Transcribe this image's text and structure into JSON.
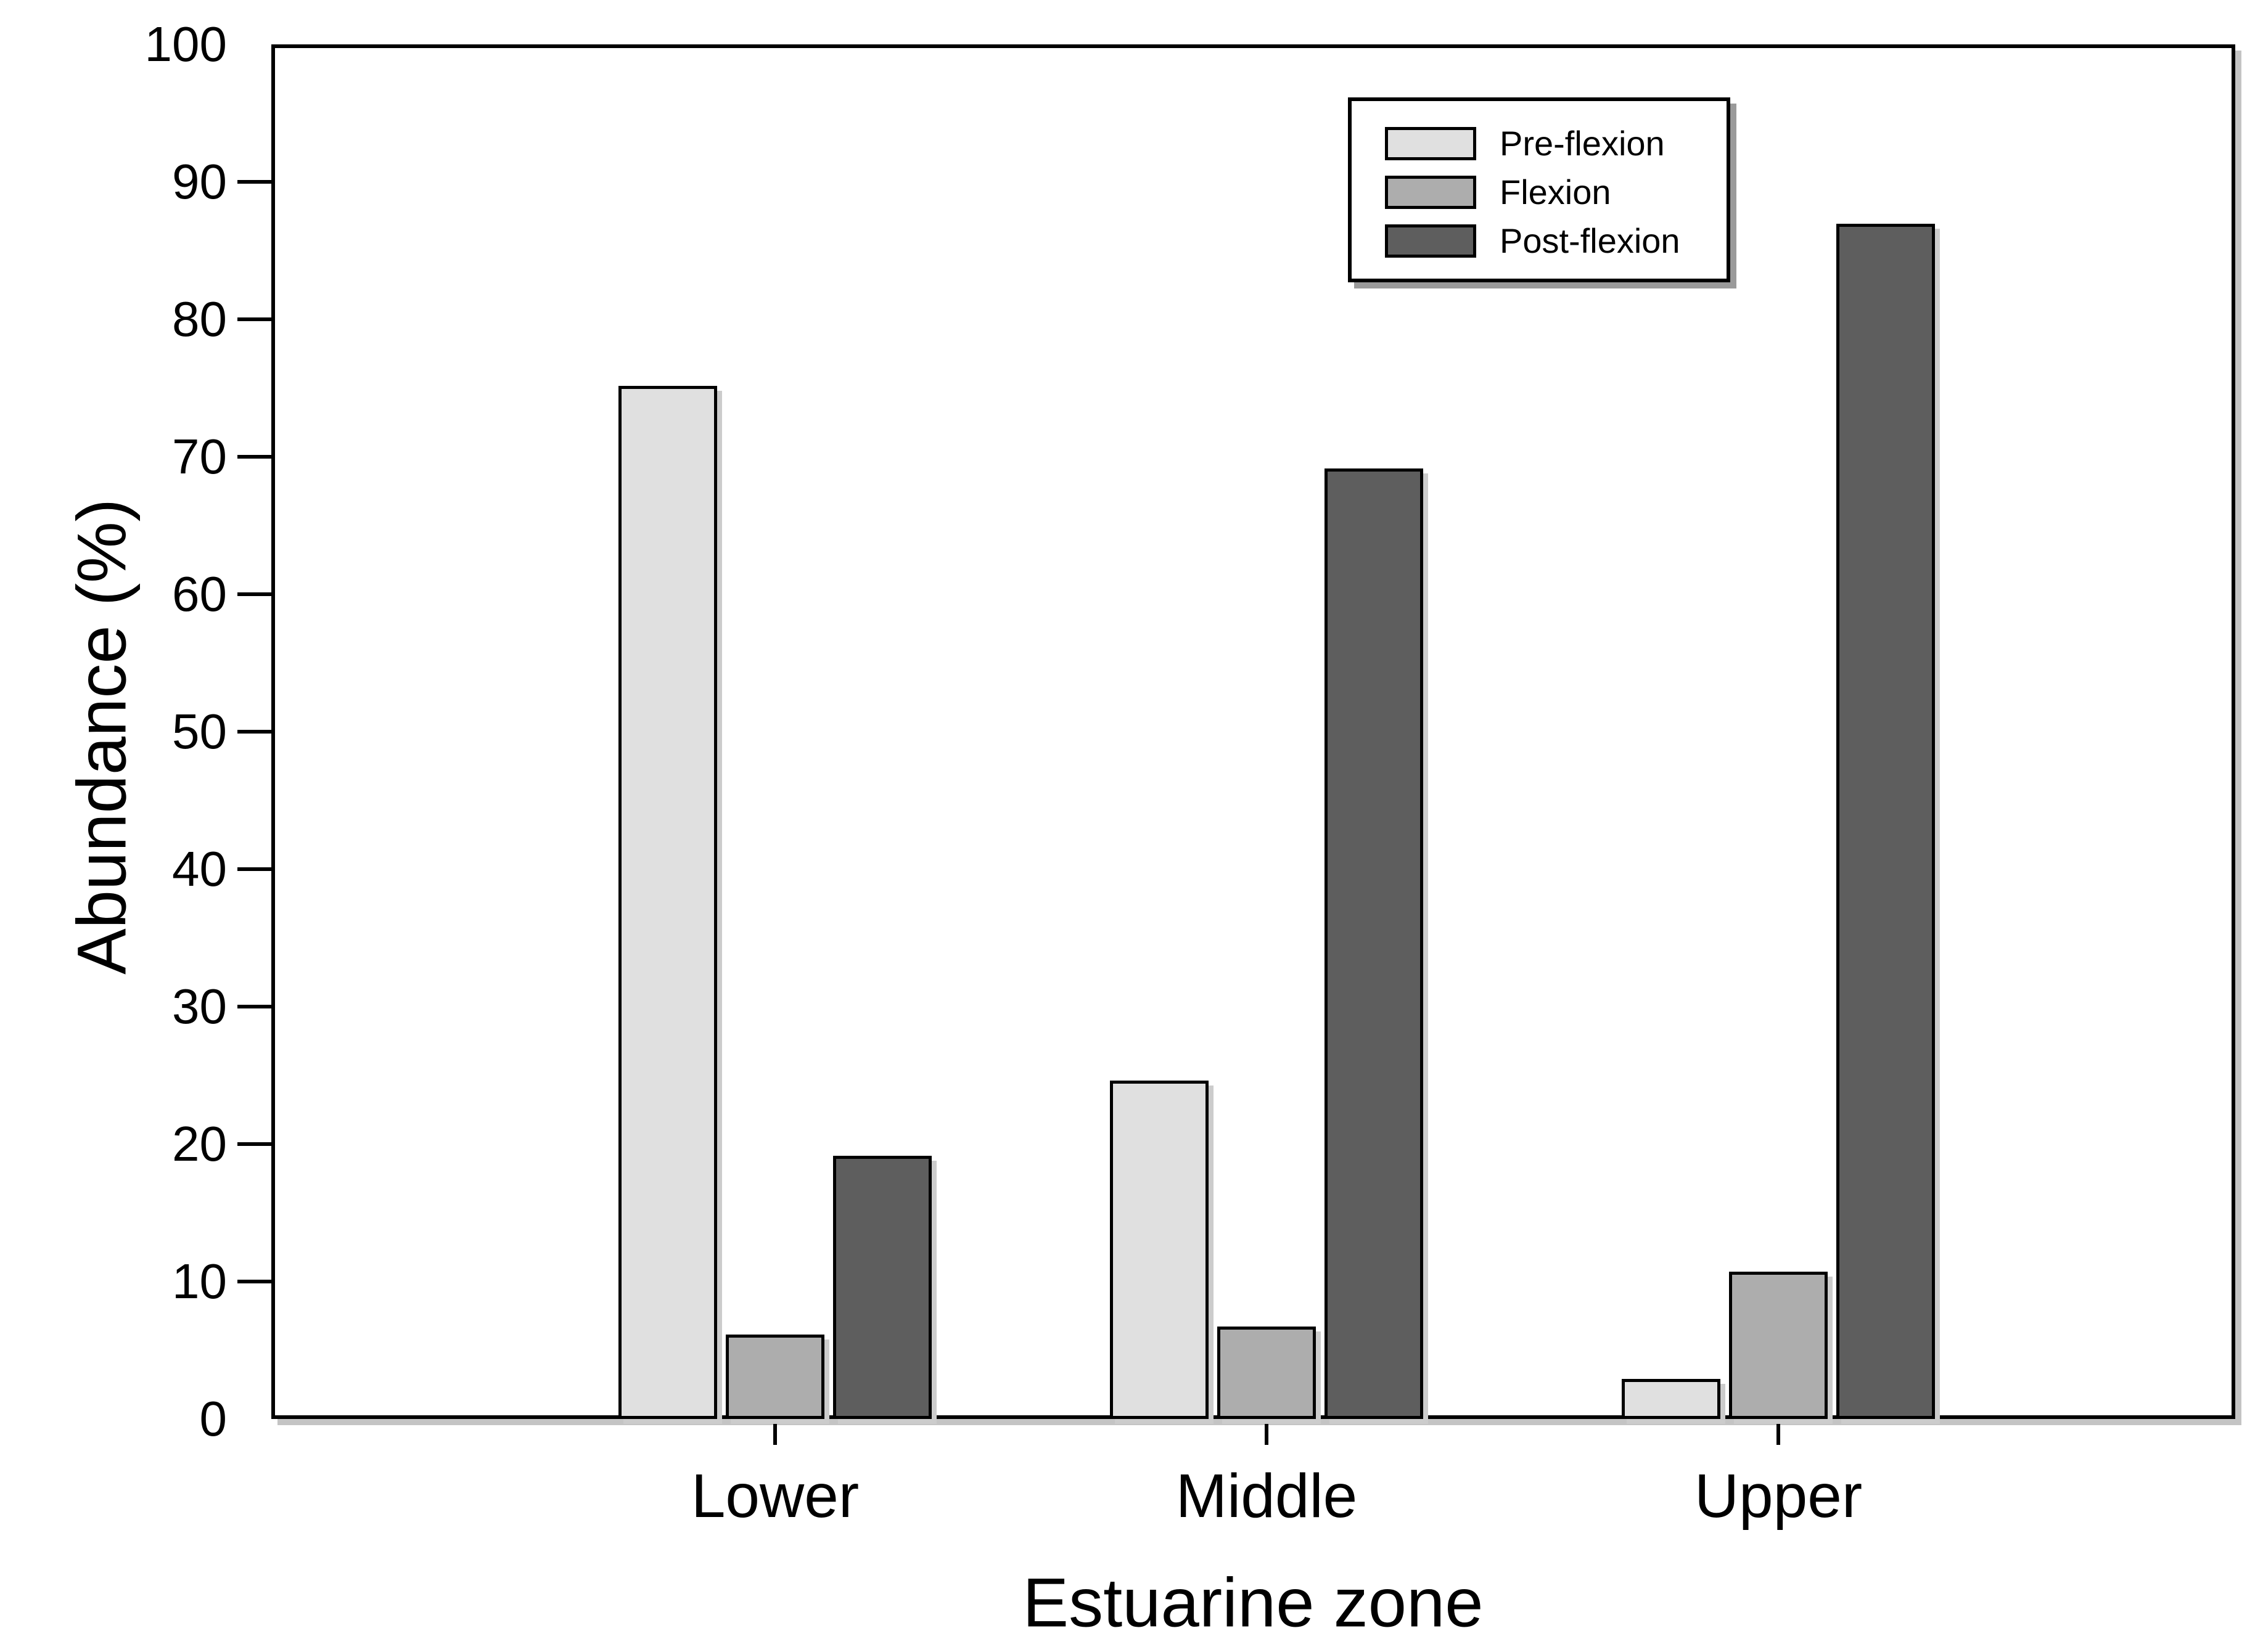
{
  "figure": {
    "ylabel": "Abundance (%)",
    "xlabel": "Estuarine zone"
  },
  "chart_data": {
    "type": "bar",
    "title": "",
    "categories": [
      "Lower",
      "Middle",
      "Upper"
    ],
    "series": [
      {
        "name": "Pre-flexion",
        "color": "#e0e0e0",
        "values": [
          75.0,
          24.5,
          2.8
        ]
      },
      {
        "name": "Flexion",
        "color": "#adadad",
        "values": [
          6.0,
          6.6,
          10.6
        ]
      },
      {
        "name": "Post-flexion",
        "color": "#5e5e5e",
        "values": [
          19.0,
          69.0,
          86.8
        ]
      }
    ],
    "xlabel": "Estuarine zone",
    "ylabel": "Abundance (%)",
    "ylim": [
      0,
      100
    ],
    "yticks": [
      0,
      10,
      20,
      30,
      40,
      50,
      60,
      70,
      80,
      90,
      100
    ],
    "grid": false,
    "legend_position": "top-right-inside",
    "bar_edge_color": "#000000",
    "axis_color": "#000000",
    "background_color": "#ffffff"
  }
}
